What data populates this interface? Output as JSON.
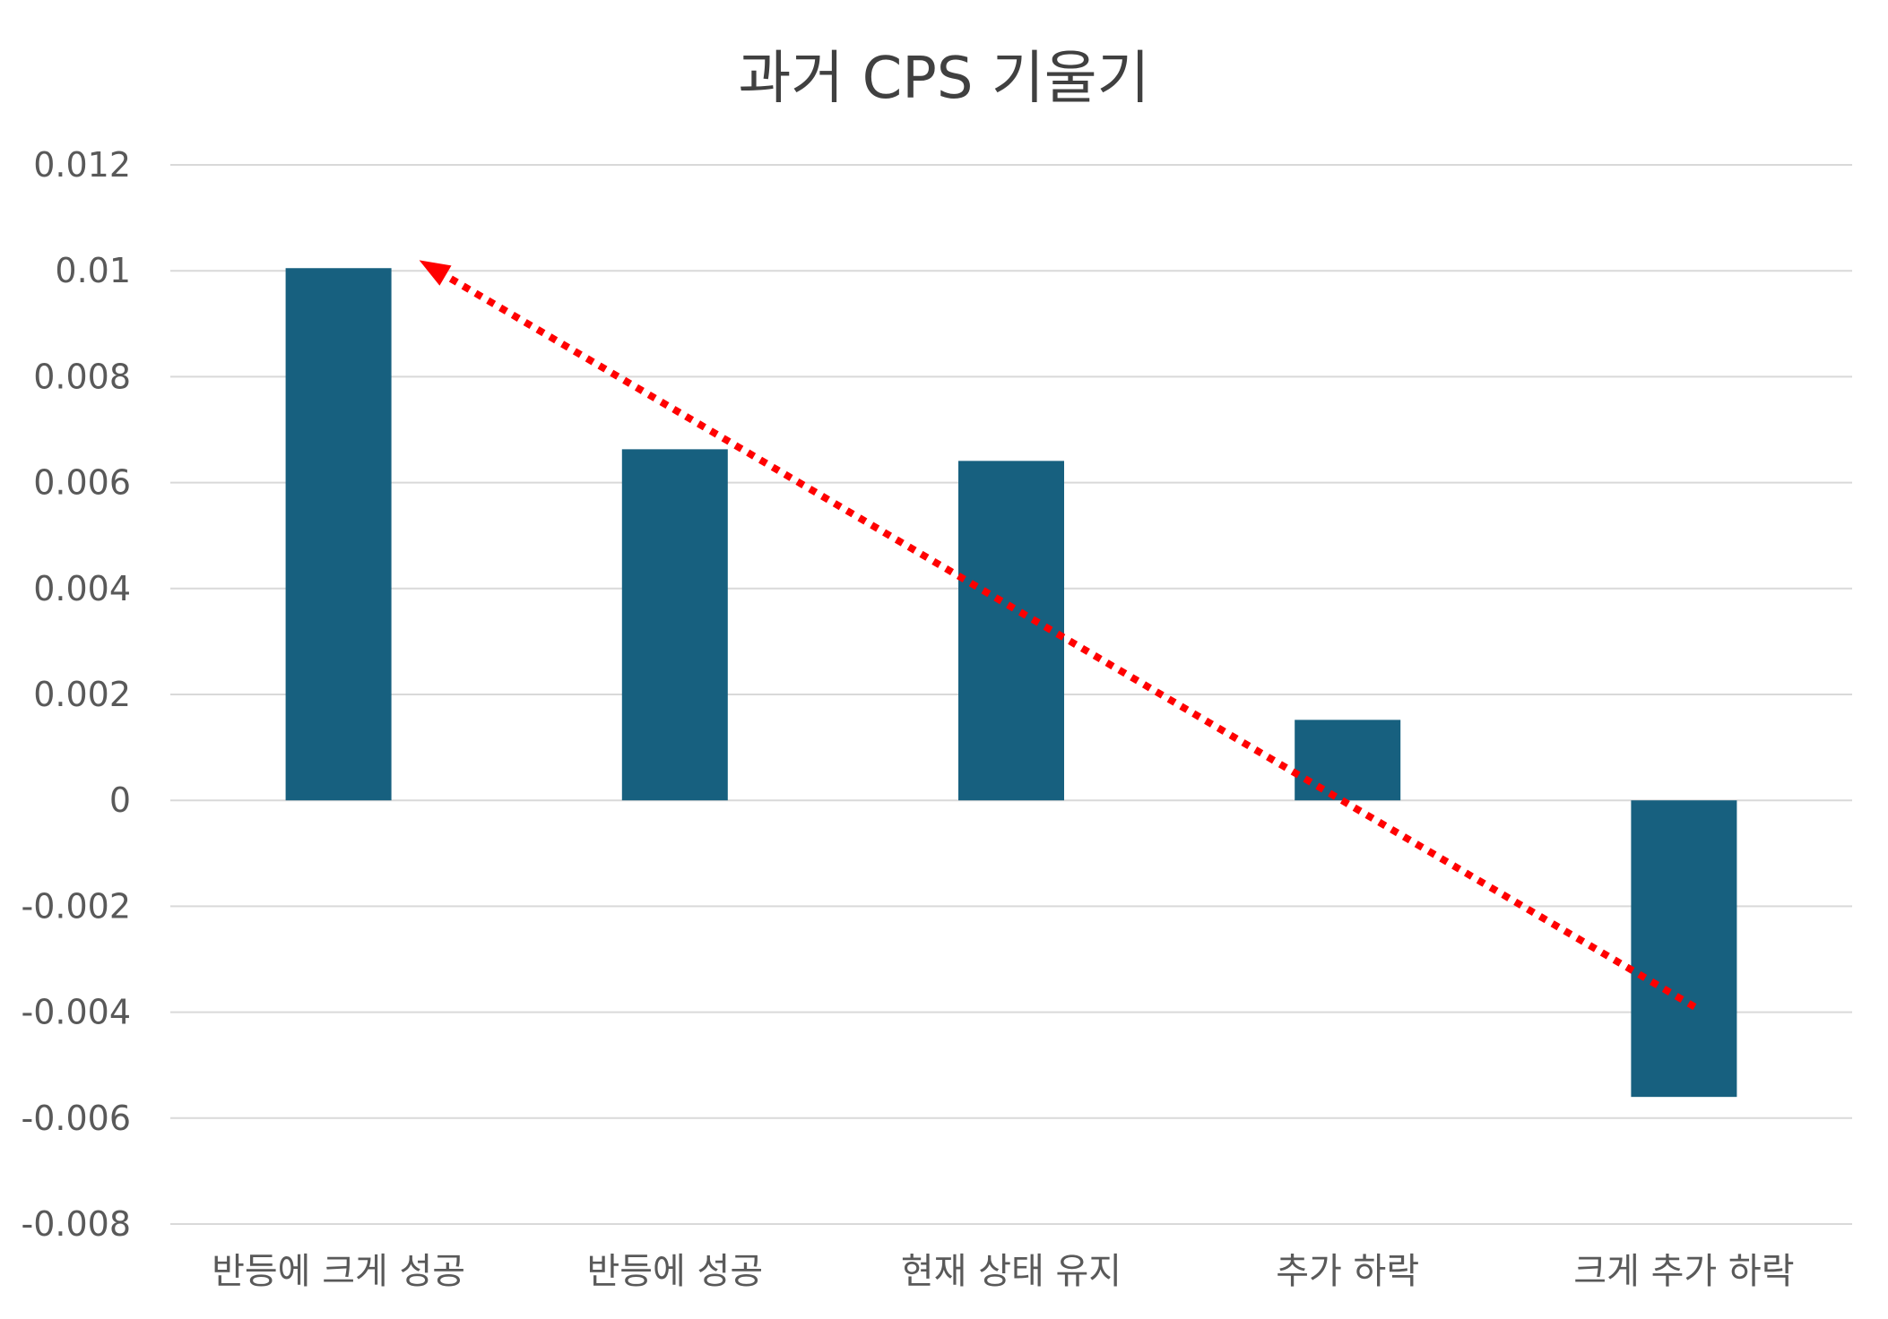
{
  "chart_data": {
    "type": "bar",
    "title": "과거 CPS 기울기",
    "categories": [
      "반등에 크게 성공",
      "반등에 성공",
      "현재 상태 유지",
      "추가 하락",
      "크게 추가 하락"
    ],
    "values": [
      0.01005,
      0.00663,
      0.00641,
      0.00152,
      -0.0056
    ],
    "ylim": [
      -0.008,
      0.012
    ],
    "yticks": [
      "0.012",
      "0.01",
      "0.008",
      "0.006",
      "0.004",
      "0.002",
      "0",
      "-0.002",
      "-0.004",
      "-0.006",
      "-0.008"
    ],
    "ytick_values": [
      0.012,
      0.01,
      0.008,
      0.006,
      0.004,
      0.002,
      0,
      -0.002,
      -0.004,
      -0.006,
      -0.008
    ],
    "grid": true,
    "legend": "none",
    "bar_color": "#17607f",
    "annotation": {
      "type": "dotted-arrow",
      "color": "#ff0000",
      "from": {
        "category_index": 4,
        "value": -0.0039
      },
      "to": {
        "category_index": 0,
        "value": 0.0102
      }
    }
  }
}
